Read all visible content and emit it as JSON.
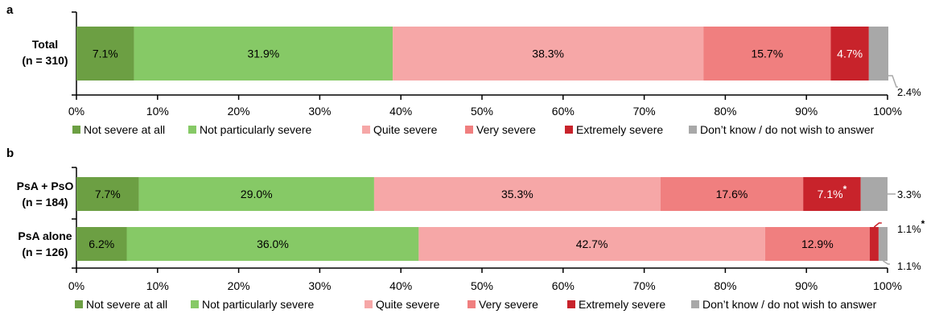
{
  "chart_data": [
    {
      "type": "bar",
      "orientation": "horizontal",
      "stacked": true,
      "panel": "a",
      "categories": [
        "Total",
        "(n = 310)"
      ],
      "rows": [
        {
          "label": "Total",
          "sublabel": "(n = 310)",
          "values": [
            7.1,
            31.9,
            38.3,
            15.7,
            4.7,
            2.4
          ],
          "labels": [
            "7.1%",
            "31.9%",
            "38.3%",
            "15.7%",
            "4.7%",
            "2.4%"
          ],
          "stars": [
            false,
            false,
            false,
            false,
            false,
            false
          ]
        }
      ],
      "series": [
        {
          "name": "Not severe at all"
        },
        {
          "name": "Not particularly severe"
        },
        {
          "name": "Quite severe"
        },
        {
          "name": "Very severe"
        },
        {
          "name": "Extremely severe"
        },
        {
          "name": "Don’t know / do not wish to answer"
        }
      ],
      "xlim": [
        0,
        100
      ],
      "xticks": [
        "0%",
        "10%",
        "20%",
        "30%",
        "40%",
        "50%",
        "60%",
        "70%",
        "80%",
        "90%",
        "100%"
      ],
      "legend_position": "bottom"
    },
    {
      "type": "bar",
      "orientation": "horizontal",
      "stacked": true,
      "panel": "b",
      "rows": [
        {
          "label": "PsA + PsO",
          "sublabel": "(n = 184)",
          "values": [
            7.7,
            29.0,
            35.3,
            17.6,
            7.1,
            3.3
          ],
          "labels": [
            "7.7%",
            "29.0%",
            "35.3%",
            "17.6%",
            "7.1%",
            "3.3%"
          ],
          "stars": [
            false,
            false,
            false,
            false,
            true,
            false
          ]
        },
        {
          "label": "PsA alone",
          "sublabel": "(n = 126)",
          "values": [
            6.2,
            36.0,
            42.7,
            12.9,
            1.1,
            1.1
          ],
          "labels": [
            "6.2%",
            "36.0%",
            "42.7%",
            "12.9%",
            "1.1%",
            "1.1%"
          ],
          "stars": [
            false,
            false,
            false,
            false,
            true,
            false
          ]
        }
      ],
      "series": [
        {
          "name": "Not severe at all"
        },
        {
          "name": "Not particularly severe"
        },
        {
          "name": "Quite severe"
        },
        {
          "name": "Very severe"
        },
        {
          "name": "Extremely severe"
        },
        {
          "name": "Don’t know / do not wish to answer"
        }
      ],
      "xlim": [
        0,
        100
      ],
      "xticks": [
        "0%",
        "10%",
        "20%",
        "30%",
        "40%",
        "50%",
        "60%",
        "70%",
        "80%",
        "90%",
        "100%"
      ],
      "legend_position": "bottom"
    }
  ],
  "colors": [
    "#6c9f43",
    "#86c966",
    "#f6a7a7",
    "#f07f7f",
    "#c8232b",
    "#a8a8a8"
  ],
  "label_colors": [
    "#000000",
    "#000000",
    "#000000",
    "#000000",
    "#ffffff",
    "#000000"
  ],
  "star_symbol": "*"
}
